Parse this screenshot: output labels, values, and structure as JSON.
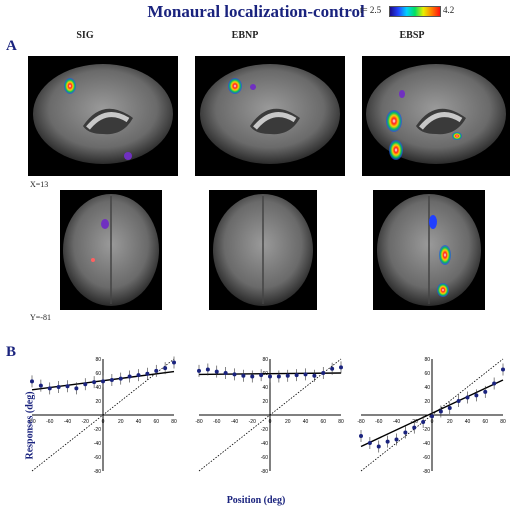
{
  "title": "Monaural localization-control",
  "colorbar": {
    "min_label": "t= 2.5",
    "max_label": "4.2"
  },
  "panels": {
    "a_label": "A",
    "b_label": "B"
  },
  "columns": [
    "SIG",
    "EBNP",
    "EBSP"
  ],
  "slices": {
    "sagittal_coord": "X=13",
    "coronal_coord": "Y=-81"
  },
  "plots": {
    "xlabel": "Position (deg)",
    "ylabel": "Responses (deg)",
    "x_ticks": [
      "-80",
      "-60",
      "-40",
      "-20",
      "0",
      "20",
      "40",
      "60",
      "80"
    ],
    "y_ticks": [
      "80",
      "60",
      "40",
      "20",
      "-20",
      "-40",
      "-60",
      "-80"
    ]
  },
  "chart_data": [
    {
      "type": "scatter",
      "title": "SIG",
      "xlim": [
        -80,
        80
      ],
      "ylim": [
        -80,
        80
      ],
      "x": [
        -80,
        -70,
        -60,
        -50,
        -40,
        -30,
        -20,
        -10,
        0,
        10,
        20,
        30,
        40,
        50,
        60,
        70,
        80
      ],
      "y": [
        48,
        42,
        38,
        40,
        41,
        38,
        44,
        47,
        48,
        50,
        52,
        55,
        57,
        59,
        63,
        67,
        75
      ],
      "fit": [
        [
          -80,
          36
        ],
        [
          80,
          62
        ]
      ],
      "identity": true
    },
    {
      "type": "scatter",
      "title": "EBNP",
      "xlim": [
        -80,
        80
      ],
      "ylim": [
        -80,
        80
      ],
      "x": [
        -80,
        -70,
        -60,
        -50,
        -40,
        -30,
        -20,
        -10,
        0,
        10,
        20,
        30,
        40,
        50,
        60,
        70,
        80
      ],
      "y": [
        63,
        65,
        62,
        60,
        58,
        56,
        55,
        57,
        55,
        55,
        56,
        57,
        58,
        56,
        60,
        66,
        68
      ],
      "fit": [
        [
          -80,
          58
        ],
        [
          80,
          60
        ]
      ],
      "identity": true
    },
    {
      "type": "scatter",
      "title": "EBSP",
      "xlim": [
        -80,
        80
      ],
      "ylim": [
        -80,
        80
      ],
      "x": [
        -80,
        -70,
        -60,
        -50,
        -40,
        -30,
        -20,
        -10,
        0,
        10,
        20,
        30,
        40,
        50,
        60,
        70,
        80
      ],
      "y": [
        -30,
        -40,
        -45,
        -38,
        -35,
        -25,
        -18,
        -10,
        -2,
        5,
        10,
        20,
        25,
        28,
        33,
        45,
        65
      ],
      "fit": [
        [
          -80,
          -45
        ],
        [
          80,
          50
        ]
      ],
      "identity": true
    }
  ]
}
